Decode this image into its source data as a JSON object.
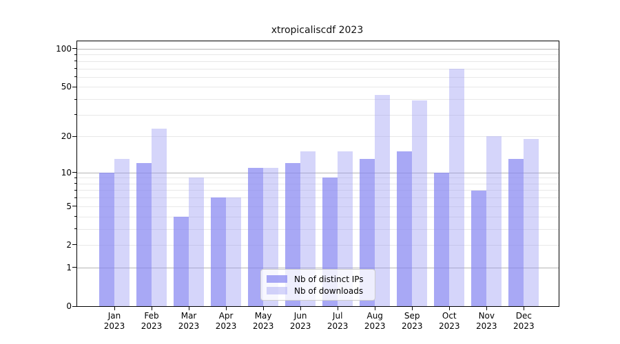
{
  "chart_data": {
    "type": "bar",
    "title": "xtropicaliscdf 2023",
    "categories": [
      "Jan",
      "Feb",
      "Mar",
      "Apr",
      "May",
      "Jun",
      "Jul",
      "Aug",
      "Sep",
      "Oct",
      "Nov",
      "Dec"
    ],
    "x_year": "2023",
    "series": [
      {
        "name": "Nb of distinct IPs",
        "values": [
          10,
          12,
          4,
          6,
          11,
          12,
          9,
          13,
          15,
          10,
          7,
          13
        ]
      },
      {
        "name": "Nb of downloads",
        "values": [
          13,
          23,
          9,
          6,
          11,
          15,
          15,
          43,
          39,
          70,
          20,
          19
        ]
      }
    ],
    "yscale": "log10(value+1)",
    "ylim": [
      0,
      115
    ],
    "y_ticks": [
      0,
      1,
      2,
      5,
      10,
      20,
      50,
      100
    ],
    "y_gridlines_major": [
      1,
      10,
      100
    ],
    "y_gridlines_minor": [
      2,
      3,
      4,
      5,
      6,
      7,
      8,
      9,
      20,
      30,
      40,
      50,
      60,
      70,
      80,
      90
    ],
    "grid": true,
    "legend_position": "lower center"
  },
  "colors": {
    "distinct_ips": "rgba(134,134,241,0.72)",
    "downloads": "rgba(150,150,243,0.40)",
    "grid_major": "#b4b4b4",
    "grid_minor": "#e8e8e8",
    "axis": "#000000",
    "legend_border": "#cccccc",
    "legend_bg": "rgba(255,255,255,0.8)"
  }
}
